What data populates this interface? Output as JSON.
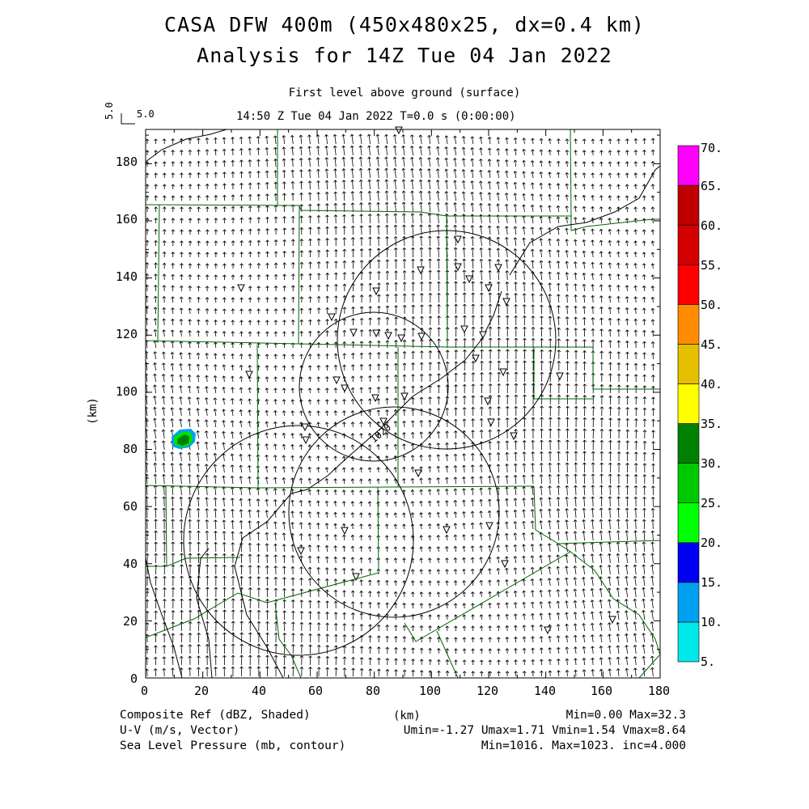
{
  "header": {
    "title_line1": "CASA DFW 400m (450x480x25, dx=0.4 km)",
    "title_line2": "Analysis for 14Z Tue 04 Jan 2022",
    "level": "First level above ground (surface)",
    "time": "14:50 Z Tue 04 Jan 2022    T=0.0 s (0:00:00)",
    "ref_vector_label": "5.0",
    "ref_vector_label_vert": "5.0"
  },
  "axes": {
    "xlabel": "(km)",
    "ylabel": "(km)",
    "xticks": [
      "0",
      "20",
      "40",
      "60",
      "80",
      "100",
      "120",
      "140",
      "160",
      "180"
    ],
    "yticks": [
      "0",
      "20",
      "40",
      "60",
      "80",
      "100",
      "120",
      "140",
      "160",
      "180"
    ]
  },
  "colorbar": {
    "labels": [
      "5.",
      "10.",
      "15.",
      "20.",
      "25.",
      "30.",
      "35.",
      "40.",
      "45.",
      "50.",
      "55.",
      "60.",
      "65.",
      "70."
    ],
    "colors": [
      "#00e8e8",
      "#00a0f0",
      "#0000f0",
      "#00ff00",
      "#00c800",
      "#008000",
      "#ffff00",
      "#e6c000",
      "#ff8c00",
      "#ff0000",
      "#d40000",
      "#c00000",
      "#ff00ff"
    ]
  },
  "footer": {
    "left1": "Composite Ref (dBZ, Shaded)",
    "left2": "U-V (m/s, Vector)",
    "left3": "Sea Level Pressure (mb, contour)",
    "center": "(km)",
    "right1": "Min=0.00 Max=32.3",
    "right2": "Umin=-1.27 Umax=1.71 Vmin=1.54 Vmax=8.64",
    "right3": "Min=1016. Max=1023. inc=4.000"
  },
  "contour_labels": [
    "1020"
  ],
  "colors": {
    "boundary": "#006400",
    "frame": "#000000",
    "echo_outer": "#00a0f0",
    "echo_mid": "#00c800",
    "echo_core": "#008000"
  }
}
